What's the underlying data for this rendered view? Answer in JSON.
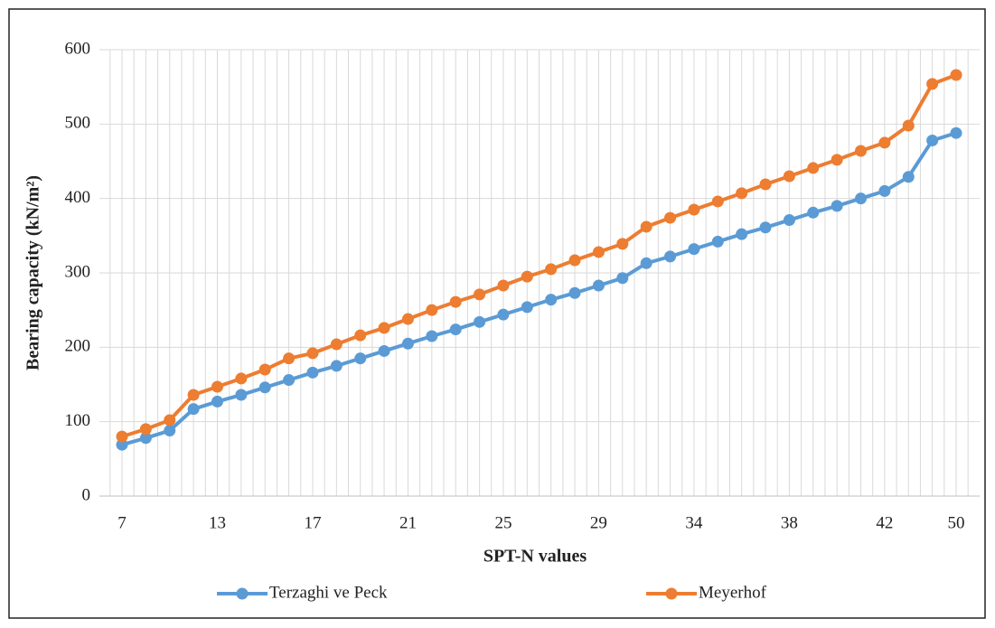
{
  "chart_data": {
    "type": "line",
    "x_label": "SPT-N values",
    "y_label": "Bearing capacity (kN/m²)",
    "categories": [
      7,
      null,
      null,
      null,
      13,
      null,
      null,
      null,
      17,
      null,
      null,
      null,
      21,
      null,
      null,
      null,
      25,
      null,
      null,
      null,
      29,
      null,
      null,
      null,
      34,
      null,
      null,
      null,
      38,
      null,
      null,
      null,
      42,
      null,
      null,
      50
    ],
    "series": [
      {
        "name": "Terzaghi ve Peck",
        "color": "#5b9bd5",
        "values": [
          69,
          78,
          88,
          117,
          127,
          136,
          146,
          156,
          166,
          175,
          185,
          195,
          205,
          215,
          224,
          234,
          244,
          254,
          264,
          273,
          283,
          293,
          313,
          322,
          332,
          342,
          352,
          361,
          371,
          381,
          390,
          400,
          410,
          429,
          478,
          488
        ]
      },
      {
        "name": "Meyerhof",
        "color": "#ed7d31",
        "values": [
          80,
          90,
          102,
          136,
          147,
          158,
          170,
          185,
          192,
          204,
          216,
          226,
          238,
          250,
          261,
          271,
          283,
          295,
          305,
          317,
          328,
          339,
          362,
          374,
          385,
          396,
          407,
          419,
          430,
          441,
          452,
          464,
          475,
          498,
          554,
          566
        ]
      }
    ],
    "ylim": [
      0,
      600
    ],
    "yticks": [
      0,
      100,
      200,
      300,
      400,
      500,
      600
    ],
    "grid": true,
    "legend": "bottom"
  }
}
